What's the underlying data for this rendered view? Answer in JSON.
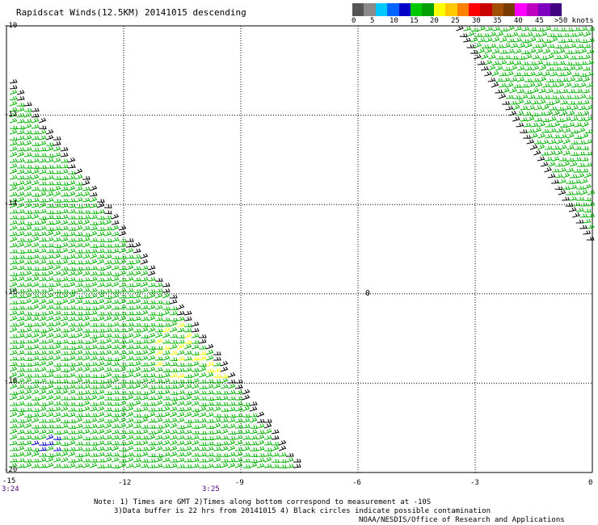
{
  "title": "Rapidscat Winds(12.5KM) 20141015 descending",
  "legend": {
    "labels": [
      "0",
      "5",
      "10",
      "15",
      "20",
      "25",
      "30",
      "35",
      "40",
      "45",
      ">50 knots"
    ],
    "colors": [
      "#555555",
      "#8a8a8a",
      "#00c8ff",
      "#0064ff",
      "#0000c8",
      "#00c800",
      "#00a000",
      "#ffff00",
      "#ffc800",
      "#ff8000",
      "#ff0000",
      "#c80000",
      "#a05000",
      "#783c00",
      "#ff00ff",
      "#c000c0",
      "#8000c0",
      "#400080"
    ]
  },
  "axes": {
    "lat_labels": [
      "-10",
      "-12",
      "-14",
      "-16",
      "-18",
      "-20"
    ],
    "lon_labels": [
      "-15",
      "-12",
      "-9",
      "-6",
      "-3",
      "0"
    ],
    "lat_range": [
      -20,
      -10
    ],
    "lon_range": [
      -15,
      0
    ],
    "grid": "dotted"
  },
  "time_labels": [
    "3:24",
    "3:25"
  ],
  "island_marker": "0",
  "notes": {
    "line1": "Note: 1) Times are GMT 2)Times along bottom correspond to measurement at -10S",
    "line2": "3)Data buffer is 22 hrs from 20141015 4) Black circles indicate possible contamination"
  },
  "credit": "NOAA/NESDIS/Office of Research and Applications",
  "swaths": [
    {
      "name": "left",
      "color": "#00b400",
      "edge_color": "#000000"
    },
    {
      "name": "right",
      "color": "#00b400",
      "edge_color": "#000000"
    }
  ]
}
